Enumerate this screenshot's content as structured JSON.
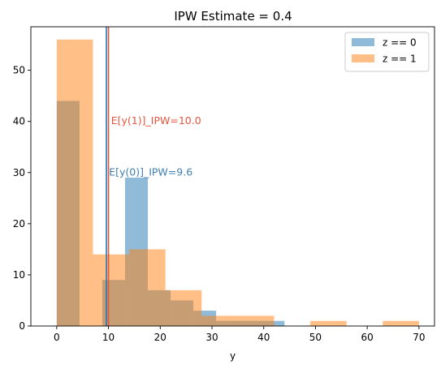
{
  "chart_data": {
    "type": "bar",
    "title": "IPW Estimate = 0.4",
    "xlabel": "y",
    "ylabel": "",
    "xlim": [
      -5,
      73
    ],
    "ylim": [
      0,
      58.5
    ],
    "xticks": [
      0,
      10,
      20,
      30,
      40,
      50,
      60,
      70
    ],
    "yticks": [
      0,
      10,
      20,
      30,
      40,
      50
    ],
    "grid": false,
    "legend_position": "top-right",
    "series": [
      {
        "name": "z == 0",
        "color": "#1f77b4",
        "opacity": 0.5,
        "bin_edges": [
          0,
          4.4,
          8.8,
          13.2,
          17.6,
          22.0,
          26.4,
          30.8,
          35.2,
          39.6,
          44.0
        ],
        "counts": [
          44,
          0,
          9,
          29,
          7,
          5,
          3,
          1,
          1,
          1
        ]
      },
      {
        "name": "z == 1",
        "color": "#ff7f0e",
        "opacity": 0.5,
        "bin_edges": [
          0,
          7,
          14,
          21,
          28,
          35,
          42,
          49,
          56,
          63,
          70
        ],
        "counts": [
          56,
          14,
          15,
          7,
          2,
          2,
          0,
          1,
          0,
          1
        ]
      }
    ],
    "vlines": [
      {
        "x": 9.6,
        "color": "#1f77b4"
      },
      {
        "x": 10.0,
        "color": "#e8553d"
      }
    ],
    "annotations": [
      {
        "text": "E[y(1)]_IPW=10.0",
        "x": 10.5,
        "y": 40,
        "color": "#e8553d"
      },
      {
        "text": "E[y(0)]_IPW=9.6",
        "x": 10.1,
        "y": 30,
        "color": "#3f7fb0"
      }
    ]
  }
}
